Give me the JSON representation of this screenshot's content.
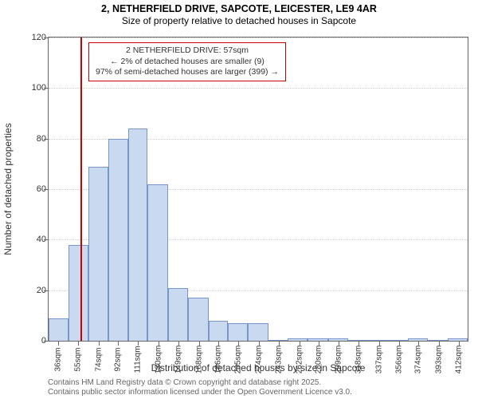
{
  "title": {
    "line1": "2, NETHERFIELD DRIVE, SAPCOTE, LEICESTER, LE9 4AR",
    "line2": "Size of property relative to detached houses in Sapcote"
  },
  "chart": {
    "type": "histogram",
    "ylabel": "Number of detached properties",
    "xlabel": "Distribution of detached houses by size in Sapcote",
    "ylim": [
      0,
      120
    ],
    "ytick_step": 20,
    "yticks": [
      0,
      20,
      40,
      60,
      80,
      100,
      120
    ],
    "xticks": [
      36,
      55,
      74,
      92,
      111,
      130,
      149,
      168,
      186,
      205,
      224,
      243,
      262,
      280,
      299,
      318,
      337,
      356,
      374,
      393,
      412
    ],
    "xtick_unit": "sqm",
    "x_range": [
      27,
      420
    ],
    "bars": [
      {
        "x0": 27,
        "x1": 46,
        "y": 9
      },
      {
        "x0": 46,
        "x1": 64,
        "y": 38
      },
      {
        "x0": 64,
        "x1": 83,
        "y": 69
      },
      {
        "x0": 83,
        "x1": 102,
        "y": 80
      },
      {
        "x0": 102,
        "x1": 120,
        "y": 84
      },
      {
        "x0": 120,
        "x1": 139,
        "y": 62
      },
      {
        "x0": 139,
        "x1": 158,
        "y": 21
      },
      {
        "x0": 158,
        "x1": 177,
        "y": 17
      },
      {
        "x0": 177,
        "x1": 195,
        "y": 8
      },
      {
        "x0": 195,
        "x1": 214,
        "y": 7
      },
      {
        "x0": 214,
        "x1": 233,
        "y": 7
      },
      {
        "x0": 233,
        "x1": 251,
        "y": 0
      },
      {
        "x0": 251,
        "x1": 270,
        "y": 1
      },
      {
        "x0": 270,
        "x1": 289,
        "y": 1
      },
      {
        "x0": 289,
        "x1": 308,
        "y": 1
      },
      {
        "x0": 308,
        "x1": 326,
        "y": 0
      },
      {
        "x0": 326,
        "x1": 345,
        "y": 0
      },
      {
        "x0": 345,
        "x1": 364,
        "y": 0
      },
      {
        "x0": 364,
        "x1": 383,
        "y": 1
      },
      {
        "x0": 383,
        "x1": 401,
        "y": 0
      },
      {
        "x0": 401,
        "x1": 420,
        "y": 1
      }
    ],
    "bar_fill": "#c9d9f0",
    "bar_stroke": "#7896c9",
    "marker_x": 57,
    "marker_color": "#cc0000",
    "background_color": "#ffffff",
    "grid_color": "#cccccc",
    "axis_color": "#666666",
    "label_fontsize": 12,
    "tick_fontsize": 11
  },
  "info_box": {
    "line1": "2 NETHERFIELD DRIVE: 57sqm",
    "line2": "← 2% of detached houses are smaller (9)",
    "line3": "97% of semi-detached houses are larger (399) →",
    "border_color": "#cc0000",
    "text_color": "#333333",
    "fontsize": 10.5
  },
  "footer": {
    "line1": "Contains HM Land Registry data © Crown copyright and database right 2025.",
    "line2": "Contains public sector information licensed under the Open Government Licence v3.0.",
    "color": "#666666",
    "fontsize": 10
  }
}
